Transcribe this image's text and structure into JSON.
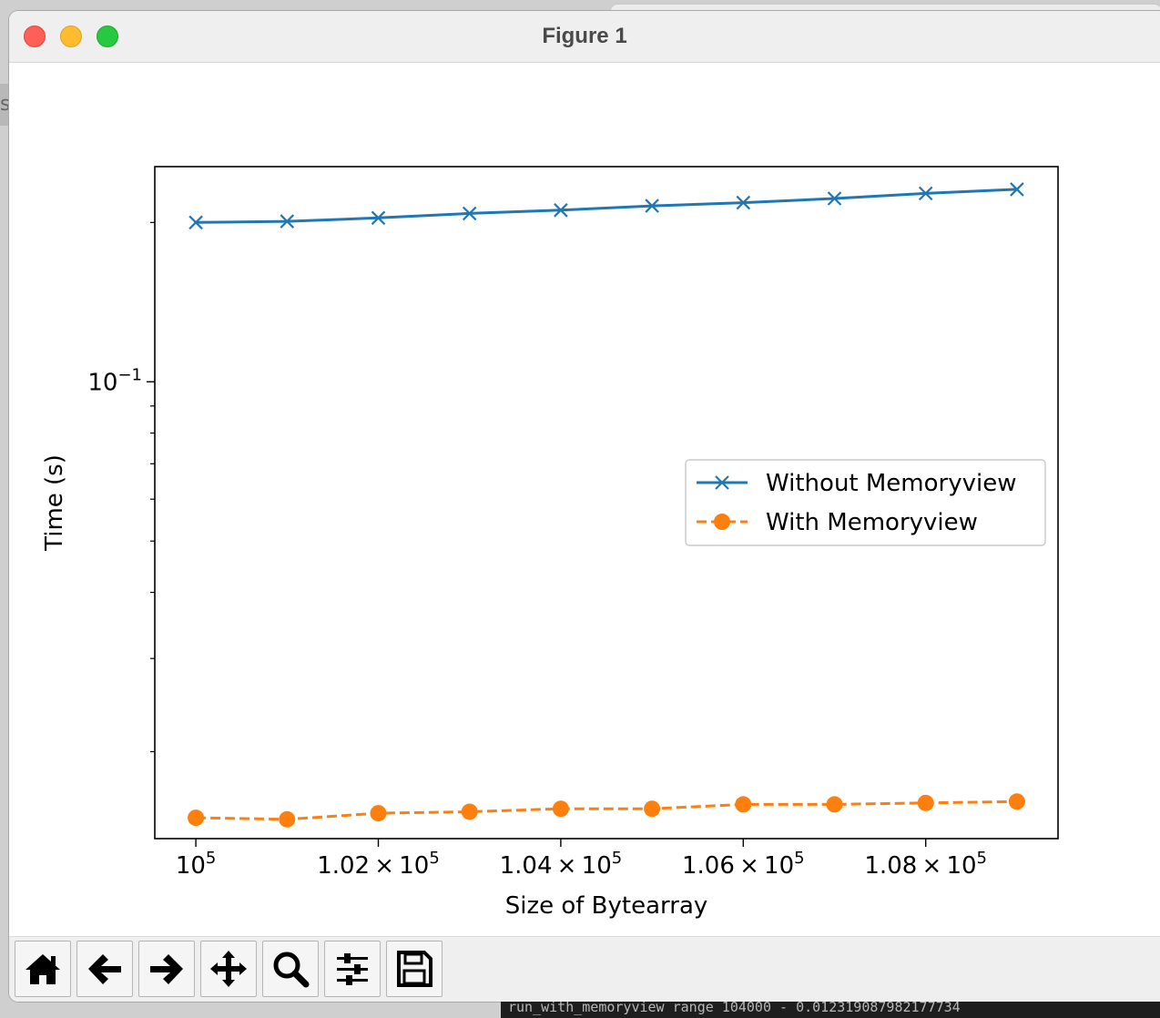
{
  "window": {
    "title": "Figure 1"
  },
  "background": {
    "left_tab_text": "s",
    "terminal_text": "run_with_memoryview range 104000 - 0.012319087982177734"
  },
  "toolbar": {
    "buttons": [
      {
        "name": "home-button",
        "icon": "home-icon"
      },
      {
        "name": "back-button",
        "icon": "arrow-left-icon"
      },
      {
        "name": "forward-button",
        "icon": "arrow-right-icon"
      },
      {
        "name": "pan-button",
        "icon": "move-icon"
      },
      {
        "name": "zoom-button",
        "icon": "magnifier-icon"
      },
      {
        "name": "configure-subplots-button",
        "icon": "sliders-icon"
      },
      {
        "name": "save-button",
        "icon": "floppy-disk-icon"
      }
    ]
  },
  "chart_data": {
    "type": "line",
    "title": "",
    "xlabel": "Size of Bytearray",
    "ylabel": "Time (s)",
    "x": [
      100000,
      101000,
      102000,
      103000,
      104000,
      105000,
      106000,
      107000,
      108000,
      109000
    ],
    "series": [
      {
        "name": "Without Memoryview",
        "color": "#1f77b4",
        "marker": "x",
        "linestyle": "solid",
        "values": [
          0.2,
          0.201,
          0.204,
          0.208,
          0.211,
          0.215,
          0.218,
          0.222,
          0.227,
          0.231
        ]
      },
      {
        "name": "With Memoryview",
        "color": "#ff7f0e",
        "marker": "o",
        "linestyle": "dashed",
        "values": [
          0.015,
          0.0149,
          0.0153,
          0.0154,
          0.0156,
          0.0156,
          0.0159,
          0.0159,
          0.016,
          0.0161
        ]
      }
    ],
    "xlim": [
      99550,
      109450
    ],
    "ylim": [
      0.0137,
      0.255
    ],
    "yscale": "log",
    "xticks": [
      {
        "value": 100000,
        "mantissa": "",
        "exp": "5"
      },
      {
        "value": 102000,
        "mantissa": "1.02",
        "exp": "5"
      },
      {
        "value": 104000,
        "mantissa": "1.04",
        "exp": "5"
      },
      {
        "value": 106000,
        "mantissa": "1.06",
        "exp": "5"
      },
      {
        "value": 108000,
        "mantissa": "1.08",
        "exp": "5"
      }
    ],
    "yticks_major": [
      {
        "value": 0.1,
        "base": "10",
        "exp": "−1"
      }
    ],
    "yticks_minor": [
      0.02,
      0.03,
      0.04,
      0.05,
      0.06,
      0.07,
      0.08,
      0.09,
      0.2
    ],
    "grid": false,
    "legend": "center-right"
  }
}
